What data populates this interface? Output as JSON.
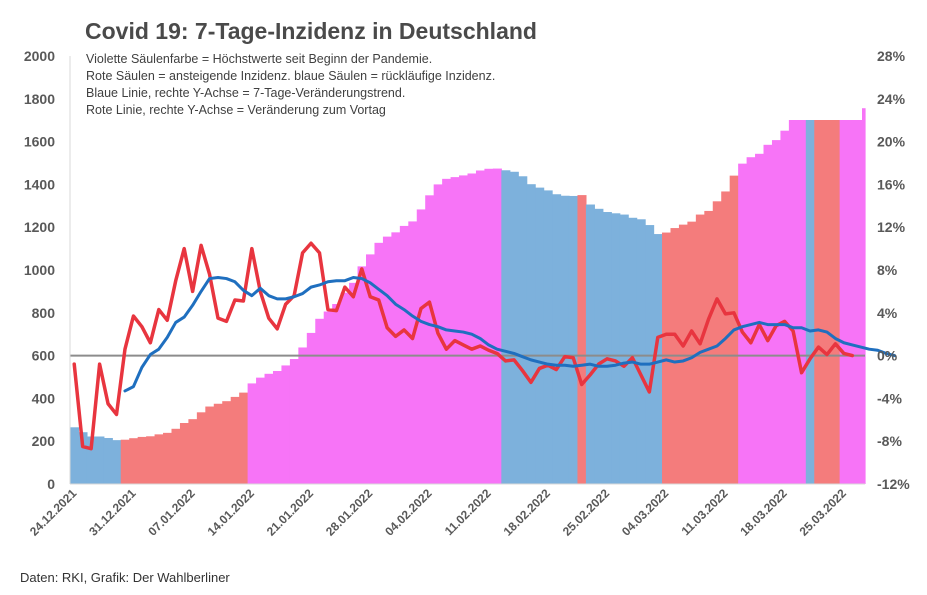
{
  "chart_data": {
    "type": "bar",
    "title": "Covid 19: 7-Tage-Inzidenz in Deutschland",
    "annotations": [
      "Violette Säulenfarbe = Höchstwerte seit Beginn der Pandemie.",
      "Rote Säulen = ansteigende Inzidenz. blaue Säulen = rückläufige Inzidenz.",
      "Blaue Linie, rechte Y-Achse = 7-Tage-Veränderungstrend.",
      "Rote Linie, rechte Y-Achse = Veränderung zum Vortag"
    ],
    "source": "Daten: RKI, Grafik: Der Wahlberliner",
    "ylim": [
      0,
      2000
    ],
    "y_ticks": [
      "0",
      "200",
      "400",
      "600",
      "800",
      "1000",
      "1200",
      "1400",
      "1600",
      "1800",
      "2000"
    ],
    "y2lim": [
      -12,
      28
    ],
    "y2_ticks": [
      "-12%",
      "-8%",
      "-4%",
      "0%",
      "4%",
      "8%",
      "12%",
      "16%",
      "20%",
      "24%",
      "28%"
    ],
    "x_ticks": [
      "24.12.2021",
      "31.12.2021",
      "07.01.2022",
      "14.01.2022",
      "21.01.2022",
      "28.01.2022",
      "04.02.2022",
      "11.02.2022",
      "18.02.2022",
      "25.02.2022",
      "04.03.2022",
      "11.03.2022",
      "18.03.2022",
      "25.03.2022"
    ],
    "colors": {
      "record": "#f774f7",
      "rising": "#f47c7c",
      "falling": "#7db1dc",
      "trend_line": "#1f6fbf",
      "daily_line": "#e8353f",
      "zero_line": "#8c8c8c",
      "axis_text": "#595959",
      "title": "#4a4a4a"
    },
    "bars": [
      {
        "date": "24.12.2021",
        "value": 265,
        "kind": "falling"
      },
      {
        "date": "25.12.2021",
        "value": 242,
        "kind": "falling"
      },
      {
        "date": "26.12.2021",
        "value": 222,
        "kind": "falling"
      },
      {
        "date": "27.12.2021",
        "value": 222,
        "kind": "falling"
      },
      {
        "date": "28.12.2021",
        "value": 215,
        "kind": "falling"
      },
      {
        "date": "29.12.2021",
        "value": 205,
        "kind": "falling"
      },
      {
        "date": "30.12.2021",
        "value": 207,
        "kind": "rising"
      },
      {
        "date": "31.12.2021",
        "value": 214,
        "kind": "rising"
      },
      {
        "date": "01.01.2022",
        "value": 220,
        "kind": "rising"
      },
      {
        "date": "02.01.2022",
        "value": 223,
        "kind": "rising"
      },
      {
        "date": "03.01.2022",
        "value": 232,
        "kind": "rising"
      },
      {
        "date": "04.01.2022",
        "value": 239,
        "kind": "rising"
      },
      {
        "date": "05.01.2022",
        "value": 258,
        "kind": "rising"
      },
      {
        "date": "06.01.2022",
        "value": 285,
        "kind": "rising"
      },
      {
        "date": "07.01.2022",
        "value": 303,
        "kind": "rising"
      },
      {
        "date": "08.01.2022",
        "value": 335,
        "kind": "rising"
      },
      {
        "date": "09.01.2022",
        "value": 362,
        "kind": "rising"
      },
      {
        "date": "10.01.2022",
        "value": 375,
        "kind": "rising"
      },
      {
        "date": "11.01.2022",
        "value": 387,
        "kind": "rising"
      },
      {
        "date": "12.01.2022",
        "value": 407,
        "kind": "rising"
      },
      {
        "date": "13.01.2022",
        "value": 427,
        "kind": "rising"
      },
      {
        "date": "14.01.2022",
        "value": 470,
        "kind": "record"
      },
      {
        "date": "15.01.2022",
        "value": 497,
        "kind": "record"
      },
      {
        "date": "16.01.2022",
        "value": 515,
        "kind": "record"
      },
      {
        "date": "17.01.2022",
        "value": 528,
        "kind": "record"
      },
      {
        "date": "18.01.2022",
        "value": 554,
        "kind": "record"
      },
      {
        "date": "19.01.2022",
        "value": 584,
        "kind": "record"
      },
      {
        "date": "20.01.2022",
        "value": 638,
        "kind": "record"
      },
      {
        "date": "21.01.2022",
        "value": 706,
        "kind": "record"
      },
      {
        "date": "22.01.2022",
        "value": 772,
        "kind": "record"
      },
      {
        "date": "23.01.2022",
        "value": 806,
        "kind": "record"
      },
      {
        "date": "24.01.2022",
        "value": 841,
        "kind": "record"
      },
      {
        "date": "25.01.2022",
        "value": 894,
        "kind": "record"
      },
      {
        "date": "26.01.2022",
        "value": 940,
        "kind": "record"
      },
      {
        "date": "27.01.2022",
        "value": 1017,
        "kind": "record"
      },
      {
        "date": "28.01.2022",
        "value": 1073,
        "kind": "record"
      },
      {
        "date": "29.01.2022",
        "value": 1127,
        "kind": "record"
      },
      {
        "date": "30.01.2022",
        "value": 1156,
        "kind": "record"
      },
      {
        "date": "31.01.2022",
        "value": 1176,
        "kind": "record"
      },
      {
        "date": "01.02.2022",
        "value": 1206,
        "kind": "record"
      },
      {
        "date": "02.02.2022",
        "value": 1227,
        "kind": "record"
      },
      {
        "date": "03.02.2022",
        "value": 1283,
        "kind": "record"
      },
      {
        "date": "04.02.2022",
        "value": 1349,
        "kind": "record"
      },
      {
        "date": "05.02.2022",
        "value": 1400,
        "kind": "record"
      },
      {
        "date": "06.02.2022",
        "value": 1426,
        "kind": "record"
      },
      {
        "date": "07.02.2022",
        "value": 1434,
        "kind": "record"
      },
      {
        "date": "08.02.2022",
        "value": 1442,
        "kind": "record"
      },
      {
        "date": "09.02.2022",
        "value": 1451,
        "kind": "record"
      },
      {
        "date": "10.02.2022",
        "value": 1465,
        "kind": "record"
      },
      {
        "date": "11.02.2022",
        "value": 1473,
        "kind": "record"
      },
      {
        "date": "12.02.2022",
        "value": 1474,
        "kind": "record"
      },
      {
        "date": "13.02.2022",
        "value": 1466,
        "kind": "falling"
      },
      {
        "date": "14.02.2022",
        "value": 1459,
        "kind": "falling"
      },
      {
        "date": "15.02.2022",
        "value": 1438,
        "kind": "falling"
      },
      {
        "date": "16.02.2022",
        "value": 1401,
        "kind": "falling"
      },
      {
        "date": "17.02.2022",
        "value": 1385,
        "kind": "falling"
      },
      {
        "date": "18.02.2022",
        "value": 1372,
        "kind": "falling"
      },
      {
        "date": "19.02.2022",
        "value": 1354,
        "kind": "falling"
      },
      {
        "date": "20.02.2022",
        "value": 1347,
        "kind": "falling"
      },
      {
        "date": "21.02.2022",
        "value": 1346,
        "kind": "falling"
      },
      {
        "date": "22.02.2022",
        "value": 1350,
        "kind": "rising"
      },
      {
        "date": "23.02.2022",
        "value": 1306,
        "kind": "falling"
      },
      {
        "date": "24.02.2022",
        "value": 1286,
        "kind": "falling"
      },
      {
        "date": "25.02.2022",
        "value": 1271,
        "kind": "falling"
      },
      {
        "date": "26.02.2022",
        "value": 1265,
        "kind": "falling"
      },
      {
        "date": "27.02.2022",
        "value": 1259,
        "kind": "falling"
      },
      {
        "date": "28.02.2022",
        "value": 1244,
        "kind": "falling"
      },
      {
        "date": "01.03.2022",
        "value": 1237,
        "kind": "falling"
      },
      {
        "date": "02.03.2022",
        "value": 1210,
        "kind": "falling"
      },
      {
        "date": "03.03.2022",
        "value": 1168,
        "kind": "falling"
      },
      {
        "date": "04.03.2022",
        "value": 1175,
        "kind": "rising"
      },
      {
        "date": "05.03.2022",
        "value": 1196,
        "kind": "rising"
      },
      {
        "date": "06.03.2022",
        "value": 1212,
        "kind": "rising"
      },
      {
        "date": "07.03.2022",
        "value": 1226,
        "kind": "rising"
      },
      {
        "date": "08.03.2022",
        "value": 1259,
        "kind": "rising"
      },
      {
        "date": "09.03.2022",
        "value": 1276,
        "kind": "rising"
      },
      {
        "date": "10.03.2022",
        "value": 1321,
        "kind": "rising"
      },
      {
        "date": "11.03.2022",
        "value": 1367,
        "kind": "rising"
      },
      {
        "date": "12.03.2022",
        "value": 1441,
        "kind": "rising"
      },
      {
        "date": "13.03.2022",
        "value": 1497,
        "kind": "record"
      },
      {
        "date": "14.03.2022",
        "value": 1527,
        "kind": "record"
      },
      {
        "date": "15.03.2022",
        "value": 1543,
        "kind": "record"
      },
      {
        "date": "16.03.2022",
        "value": 1585,
        "kind": "record"
      },
      {
        "date": "17.03.2022",
        "value": 1607,
        "kind": "record"
      },
      {
        "date": "18.03.2022",
        "value": 1651,
        "kind": "record"
      },
      {
        "date": "19.03.2022",
        "value": 1706,
        "kind": "record"
      },
      {
        "date": "20.03.2022",
        "value": 1735,
        "kind": "record"
      },
      {
        "date": "21.03.2022",
        "value": 1714,
        "kind": "falling"
      },
      {
        "date": "22.03.2022",
        "value": 1714,
        "kind": "rising"
      },
      {
        "date": "23.03.2022",
        "value": 1733,
        "kind": "rising"
      },
      {
        "date": "24.03.2022",
        "value": 1734,
        "kind": "rising"
      },
      {
        "date": "25.03.2022",
        "value": 1752,
        "kind": "record"
      },
      {
        "date": "26.03.2022",
        "value": 1756,
        "kind": "record"
      },
      {
        "date": "27.03.2022",
        "value": 1756,
        "kind": "record"
      }
    ],
    "series": [
      {
        "name": "Veränderung zum Vortag",
        "axis": "right",
        "values": [
          -0.8,
          -8.5,
          -8.7,
          -0.8,
          -4.5,
          -5.5,
          0.6,
          3.7,
          2.7,
          1.2,
          4.3,
          3.3,
          7.0,
          10.0,
          6.0,
          10.3,
          7.6,
          3.5,
          3.2,
          5.2,
          5.1,
          10.0,
          6.0,
          3.5,
          2.5,
          4.8,
          5.6,
          9.6,
          10.5,
          9.6,
          4.3,
          4.2,
          6.4,
          5.5,
          8.1,
          5.5,
          5.2,
          2.6,
          1.8,
          2.4,
          1.6,
          4.4,
          5.0,
          2.1,
          0.6,
          1.4,
          1.0,
          0.6,
          0.9,
          0.5,
          0.2,
          -0.5,
          -0.4,
          -1.4,
          -2.5,
          -1.2,
          -0.9,
          -1.3,
          -0.1,
          -0.2,
          -2.7,
          -1.8,
          -0.8,
          -0.3,
          -0.5,
          -1.0,
          -0.2,
          -1.8,
          -3.4,
          1.7,
          2.0,
          2.0,
          0.9,
          2.3,
          1.1,
          3.4,
          5.3,
          3.9,
          4.0,
          2.2,
          1.2,
          2.9,
          1.4,
          2.8,
          3.2,
          2.3,
          -1.6,
          -0.3,
          0.8,
          0.1,
          1.1,
          0.2,
          0.0
        ]
      },
      {
        "name": "7-Tage-Veränderungstrend",
        "axis": "right",
        "start": "30.12.2021",
        "values": [
          -3.3,
          -2.9,
          -1.1,
          0.1,
          0.6,
          1.7,
          3.1,
          3.6,
          4.7,
          6.0,
          7.2,
          7.3,
          7.2,
          6.9,
          6.1,
          5.6,
          6.3,
          5.6,
          5.3,
          5.3,
          5.5,
          5.8,
          6.4,
          6.6,
          6.9,
          7.0,
          7.0,
          7.3,
          7.2,
          6.8,
          6.2,
          5.6,
          4.8,
          4.3,
          3.7,
          3.2,
          2.9,
          2.7,
          2.4,
          2.3,
          2.2,
          2.0,
          1.6,
          1.0,
          0.6,
          0.4,
          0.2,
          -0.1,
          -0.4,
          -0.6,
          -0.8,
          -0.9,
          -0.9,
          -1.0,
          -0.9,
          -0.8,
          -1.0,
          -1.0,
          -0.9,
          -0.7,
          -0.6,
          -0.8,
          -0.8,
          -0.6,
          -0.4,
          -0.6,
          -0.5,
          -0.2,
          0.3,
          0.6,
          0.9,
          1.6,
          2.4,
          2.7,
          2.9,
          3.1,
          2.9,
          2.9,
          2.9,
          2.6,
          2.6,
          2.3,
          2.4,
          2.2,
          1.6,
          1.2,
          1.0,
          0.8,
          0.6,
          0.5,
          0.2,
          0.0
        ]
      }
    ]
  }
}
